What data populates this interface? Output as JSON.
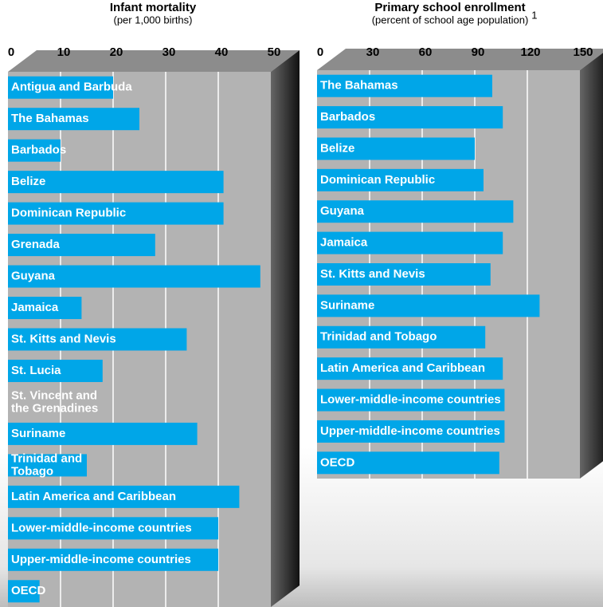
{
  "chart_data": [
    {
      "type": "bar",
      "orientation": "horizontal",
      "title": "Infant mortality",
      "subtitle": "(per 1,000 births)",
      "categories": [
        "Antigua and Barbuda",
        "The Bahamas",
        "Barbados",
        "Belize",
        "Dominican Republic",
        "Grenada",
        "Guyana",
        "Jamaica",
        "St. Kitts and Nevis",
        "St. Lucia",
        "St. Vincent and\nthe Grenadines",
        "Suriname",
        "Trinidad and\nTobago",
        "Latin America and Caribbean",
        "Lower-middle-income countries",
        "Upper-middle-income countries",
        "OECD"
      ],
      "values": [
        20,
        25,
        10,
        41,
        41,
        28,
        48,
        14,
        34,
        18,
        null,
        36,
        15,
        44,
        40,
        40,
        6
      ],
      "color": "#00a6e8",
      "xlim": [
        0,
        50
      ],
      "xticks": [
        0,
        10,
        20,
        30,
        40,
        50
      ],
      "grid": true
    },
    {
      "type": "bar",
      "orientation": "horizontal",
      "title": "Primary school enrollment",
      "subtitle": "(percent of school age population)",
      "footnote_marker": "1",
      "categories": [
        "The Bahamas",
        "Barbados",
        "Belize",
        "Dominican Republic",
        "Guyana",
        "Jamaica",
        "St. Kitts and Nevis",
        "Suriname",
        "Trinidad and Tobago",
        "Latin America and Caribbean",
        "Lower-middle-income countries",
        "Upper-middle-income countries",
        "OECD"
      ],
      "values": [
        100,
        106,
        90,
        95,
        112,
        106,
        99,
        127,
        96,
        106,
        107,
        107,
        104
      ],
      "color": "#00a6e8",
      "xlim": [
        0,
        150
      ],
      "xticks": [
        0,
        30,
        60,
        90,
        120,
        150
      ],
      "grid": true
    }
  ]
}
